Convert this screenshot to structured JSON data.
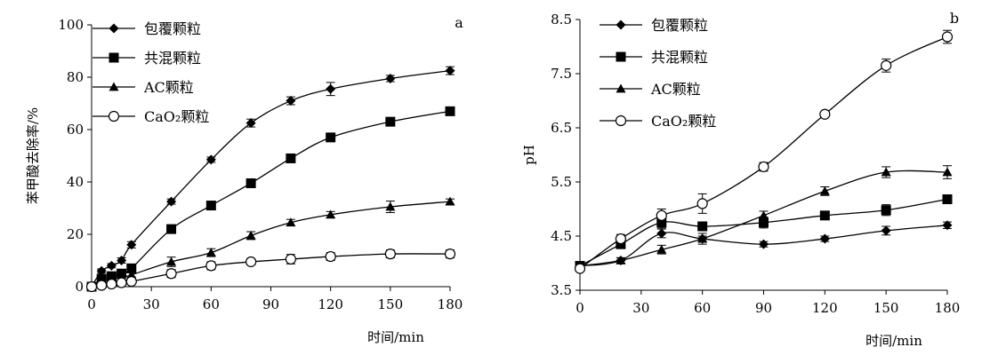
{
  "chart_data": [
    {
      "type": "line",
      "panel_label": "a",
      "xlabel": "时间/min",
      "ylabel": "苯甲酸去除率/%",
      "xlim": [
        0,
        180
      ],
      "ylim": [
        0,
        100
      ],
      "xticks": [
        0,
        30,
        60,
        90,
        120,
        150,
        180
      ],
      "yticks": [
        0,
        20,
        40,
        60,
        80,
        100
      ],
      "grid": false,
      "legend_position": "top-left",
      "series": [
        {
          "name": "包覆颗粒",
          "marker": "diamond",
          "x": [
            0,
            5,
            10,
            15,
            20,
            40,
            60,
            80,
            100,
            120,
            150,
            180
          ],
          "y": [
            0,
            6,
            8,
            10,
            16,
            32.5,
            48.5,
            62.5,
            71,
            75.5,
            79.5,
            82.5
          ],
          "err": [
            0.5,
            0.8,
            0.8,
            1,
            1.2,
            1,
            1,
            1.5,
            1.5,
            2.5,
            1.2,
            1.5
          ]
        },
        {
          "name": "共混颗粒",
          "marker": "square",
          "x": [
            0,
            5,
            10,
            15,
            20,
            40,
            60,
            80,
            100,
            120,
            150,
            180
          ],
          "y": [
            0,
            3,
            4,
            5,
            7,
            22,
            31,
            39.5,
            49,
            57,
            63,
            67
          ],
          "err": [
            0.5,
            0.8,
            0.8,
            1,
            1.2,
            1.5,
            1.2,
            1.2,
            1.2,
            1.2,
            1.2,
            1.2
          ]
        },
        {
          "name": "AC颗粒",
          "marker": "triangle",
          "x": [
            0,
            5,
            10,
            15,
            20,
            40,
            60,
            80,
            100,
            120,
            150,
            180
          ],
          "y": [
            0,
            2,
            3,
            3.5,
            4.5,
            9.5,
            13,
            19.5,
            24.5,
            27.5,
            30.5,
            32.5
          ],
          "err": [
            0.5,
            0.6,
            0.6,
            0.8,
            0.8,
            1.8,
            1.5,
            1.5,
            1.2,
            1.2,
            2.2,
            1
          ]
        },
        {
          "name": "CaO₂颗粒",
          "marker": "circle-open",
          "x": [
            0,
            5,
            10,
            15,
            20,
            40,
            60,
            80,
            100,
            120,
            150,
            180
          ],
          "y": [
            0,
            0.5,
            1,
            1.5,
            2,
            5,
            8,
            9.5,
            10.5,
            11.5,
            12.5,
            12.5
          ],
          "err": [
            0.5,
            0.5,
            0.5,
            0.8,
            0.8,
            1.5,
            1.5,
            1.2,
            1.8,
            1.5,
            1.5,
            1.5
          ]
        }
      ]
    },
    {
      "type": "line",
      "panel_label": "b",
      "xlabel": "时间/min",
      "ylabel": "pH",
      "xlim": [
        0,
        180
      ],
      "ylim": [
        3.5,
        8.5
      ],
      "xticks": [
        0,
        30,
        60,
        90,
        120,
        150,
        180
      ],
      "yticks": [
        3.5,
        4.5,
        5.5,
        6.5,
        7.5,
        8.5
      ],
      "grid": false,
      "legend_position": "top-left",
      "series": [
        {
          "name": "包覆颗粒",
          "marker": "diamond",
          "x": [
            0,
            20,
            40,
            60,
            90,
            120,
            150,
            180
          ],
          "y": [
            3.95,
            4.05,
            4.55,
            4.45,
            4.35,
            4.45,
            4.6,
            4.7
          ],
          "err": [
            0.05,
            0.05,
            0.08,
            0.05,
            0.05,
            0.05,
            0.08,
            0.06
          ]
        },
        {
          "name": "共混颗粒",
          "marker": "square",
          "x": [
            0,
            20,
            40,
            60,
            90,
            120,
            150,
            180
          ],
          "y": [
            3.95,
            4.35,
            4.75,
            4.68,
            4.75,
            4.88,
            4.98,
            5.18
          ],
          "err": [
            0.05,
            0.08,
            0.1,
            0.08,
            0.1,
            0.06,
            0.1,
            0.08
          ]
        },
        {
          "name": "AC颗粒",
          "marker": "triangle",
          "x": [
            0,
            20,
            40,
            60,
            90,
            120,
            150,
            180
          ],
          "y": [
            3.95,
            4.05,
            4.25,
            4.45,
            4.88,
            5.33,
            5.68,
            5.68
          ],
          "err": [
            0.05,
            0.05,
            0.08,
            0.1,
            0.08,
            0.08,
            0.1,
            0.12
          ]
        },
        {
          "name": "CaO₂颗粒",
          "marker": "circle-open",
          "x": [
            0,
            20,
            40,
            60,
            90,
            120,
            150,
            180
          ],
          "y": [
            3.9,
            4.45,
            4.88,
            5.1,
            5.78,
            6.75,
            7.65,
            8.18
          ],
          "err": [
            0.05,
            0.08,
            0.12,
            0.18,
            0.08,
            0.05,
            0.12,
            0.12
          ]
        }
      ]
    }
  ]
}
